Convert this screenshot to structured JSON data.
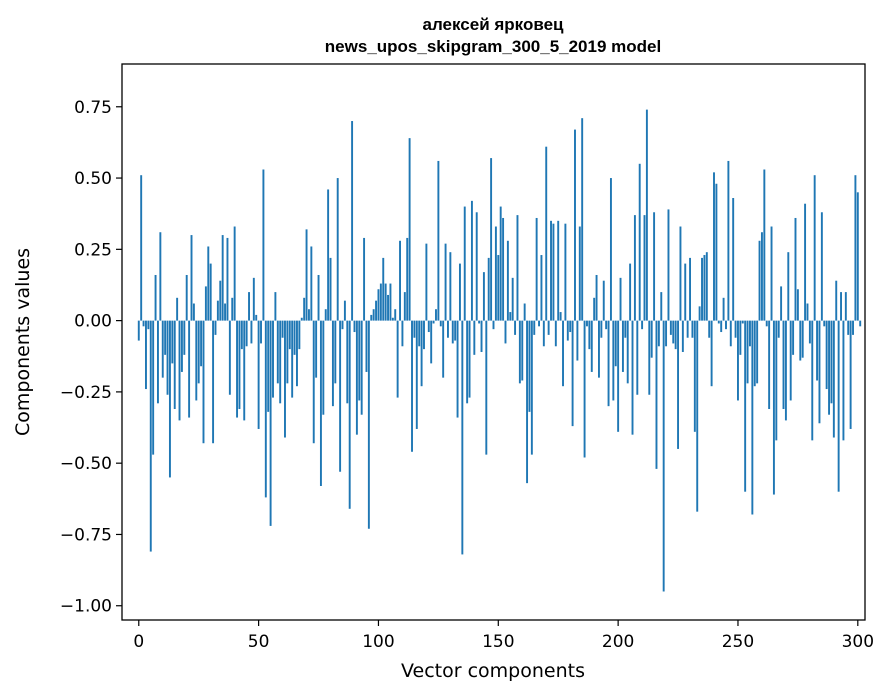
{
  "chart_data": {
    "type": "bar",
    "title_line1": "алексей ярковец",
    "title_line2": "news_upos_skipgram_300_5_2019 model",
    "xlabel": "Vector components",
    "ylabel": "Components values",
    "xlim": [
      -7,
      303
    ],
    "ylim": [
      -1.05,
      0.9
    ],
    "xticks": [
      0,
      50,
      100,
      150,
      200,
      250,
      300
    ],
    "xtick_labels": [
      "0",
      "50",
      "100",
      "150",
      "200",
      "250",
      "300"
    ],
    "yticks": [
      -1.0,
      -0.75,
      -0.5,
      -0.25,
      0.0,
      0.25,
      0.5,
      0.75
    ],
    "ytick_labels": [
      "−1.00",
      "−0.75",
      "−0.50",
      "−0.25",
      "0.00",
      "0.25",
      "0.50",
      "0.75"
    ],
    "grid": false,
    "bar_color": "#1f77b4",
    "values": [
      -0.07,
      0.51,
      -0.02,
      -0.24,
      -0.03,
      -0.81,
      -0.47,
      0.16,
      -0.29,
      0.31,
      -0.2,
      -0.12,
      -0.26,
      -0.55,
      -0.15,
      -0.31,
      0.08,
      -0.35,
      -0.18,
      -0.12,
      0.16,
      -0.34,
      0.3,
      0.06,
      -0.28,
      -0.22,
      -0.16,
      -0.43,
      0.12,
      0.26,
      0.2,
      -0.43,
      -0.05,
      0.07,
      0.14,
      0.3,
      0.06,
      0.29,
      -0.26,
      0.08,
      0.33,
      -0.34,
      -0.31,
      -0.1,
      -0.35,
      -0.09,
      0.1,
      -0.08,
      0.15,
      0.02,
      -0.38,
      -0.08,
      0.53,
      -0.62,
      -0.32,
      -0.72,
      -0.27,
      0.1,
      -0.22,
      -0.29,
      -0.06,
      -0.41,
      -0.22,
      -0.1,
      -0.27,
      -0.12,
      -0.23,
      -0.1,
      0.01,
      0.08,
      0.32,
      0.04,
      0.26,
      -0.43,
      -0.2,
      0.16,
      -0.58,
      -0.33,
      0.04,
      0.46,
      0.22,
      -0.3,
      -0.22,
      0.5,
      -0.53,
      -0.03,
      0.07,
      -0.29,
      -0.66,
      0.7,
      -0.04,
      -0.4,
      -0.28,
      -0.33,
      0.29,
      -0.18,
      -0.73,
      0.02,
      0.04,
      0.07,
      0.11,
      0.13,
      0.22,
      0.13,
      0.09,
      0.13,
      0.01,
      0.04,
      -0.27,
      0.28,
      -0.09,
      0.1,
      0.29,
      0.64,
      -0.46,
      -0.06,
      -0.38,
      -0.09,
      -0.23,
      -0.1,
      0.27,
      -0.04,
      -0.15,
      -0.01,
      0.04,
      0.56,
      -0.02,
      -0.2,
      0.27,
      -0.06,
      0.24,
      -0.08,
      -0.07,
      -0.34,
      0.2,
      -0.82,
      0.4,
      -0.29,
      -0.27,
      0.42,
      -0.12,
      0.38,
      -0.01,
      -0.11,
      0.17,
      -0.47,
      0.22,
      0.57,
      -0.03,
      0.33,
      0.23,
      0.4,
      0.36,
      -0.08,
      0.28,
      0.03,
      0.15,
      -0.05,
      0.37,
      -0.22,
      -0.21,
      0.06,
      -0.57,
      -0.32,
      -0.47,
      -0.05,
      0.36,
      -0.02,
      0.23,
      -0.09,
      0.61,
      -0.05,
      0.35,
      0.34,
      -0.09,
      0.35,
      0.03,
      -0.23,
      0.34,
      -0.07,
      -0.04,
      -0.37,
      0.67,
      -0.14,
      0.33,
      0.71,
      -0.48,
      -0.02,
      -0.1,
      -0.18,
      0.08,
      0.16,
      -0.2,
      -0.06,
      0.14,
      -0.03,
      -0.3,
      0.5,
      -0.28,
      -0.16,
      -0.39,
      0.15,
      -0.18,
      -0.06,
      -0.22,
      0.2,
      -0.4,
      0.37,
      -0.26,
      0.55,
      -0.03,
      0.37,
      0.74,
      -0.26,
      -0.13,
      0.38,
      -0.52,
      -0.09,
      0.1,
      -0.95,
      -0.09,
      0.39,
      -0.05,
      -0.08,
      -0.1,
      -0.45,
      0.33,
      -0.11,
      0.2,
      -0.06,
      0.22,
      -0.06,
      -0.39,
      -0.67,
      0.05,
      0.22,
      0.23,
      0.24,
      -0.06,
      -0.23,
      0.52,
      0.48,
      -0.01,
      -0.04,
      0.08,
      -0.03,
      0.56,
      -0.09,
      0.43,
      -0.06,
      -0.28,
      -0.12,
      -0.01,
      -0.6,
      -0.22,
      -0.09,
      -0.68,
      -0.23,
      -0.22,
      0.28,
      0.31,
      0.53,
      -0.02,
      -0.31,
      0.33,
      -0.61,
      -0.42,
      -0.06,
      0.12,
      -0.31,
      -0.35,
      0.24,
      -0.28,
      -0.12,
      0.36,
      0.11,
      -0.14,
      -0.13,
      0.41,
      0.06,
      -0.08,
      -0.42,
      0.51,
      -0.21,
      -0.36,
      0.38,
      -0.02,
      -0.24,
      -0.33,
      -0.29,
      -0.41,
      0.14,
      -0.6,
      0.1,
      -0.42,
      0.1,
      -0.05,
      -0.38,
      -0.05,
      0.51,
      0.45,
      -0.02
    ]
  }
}
